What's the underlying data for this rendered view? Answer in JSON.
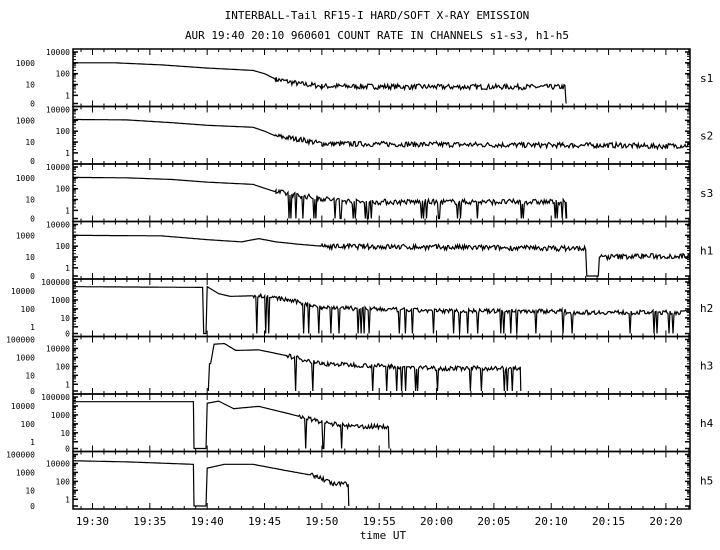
{
  "chart_data": {
    "type": "line",
    "title": "INTERBALL-Tail RF15-I HARD/SOFT X-RAY EMISSION",
    "subtitle": "AUR 19:40 20:10 960601  COUNT RATE IN CHANNELS s1-s3, h1-h5",
    "xlabel": "time UT",
    "x_unit": "minutes after 19:00",
    "xlim": [
      28.3,
      82.1
    ],
    "x_ticks": [
      30,
      35,
      40,
      45,
      50,
      55,
      60,
      65,
      70,
      75,
      80
    ],
    "x_tick_labels": [
      "19:30",
      "19:35",
      "19:40",
      "19:45",
      "19:50",
      "19:55",
      "20:00",
      "20:05",
      "20:10",
      "20:15",
      "20:20"
    ],
    "yscale": "log (0 at bottom)",
    "panels": [
      {
        "name": "s1",
        "y_ticks": [
          "0",
          "1",
          "10",
          "100",
          "1000",
          "10000"
        ],
        "ymax_decade": 4,
        "noise_from": 46,
        "points": [
          [
            28.3,
            1000
          ],
          [
            32,
            1000
          ],
          [
            36,
            650
          ],
          [
            40,
            330
          ],
          [
            44,
            200
          ],
          [
            45,
            100
          ],
          [
            46,
            30
          ],
          [
            48,
            12
          ],
          [
            50,
            7
          ],
          [
            60,
            6
          ],
          [
            71.2,
            6
          ],
          [
            71.3,
            0
          ]
        ]
      },
      {
        "name": "s2",
        "y_ticks": [
          "0",
          "1",
          "10",
          "100",
          "1000",
          "10000"
        ],
        "ymax_decade": 4,
        "noise_from": 46,
        "points": [
          [
            28.3,
            1200
          ],
          [
            33,
            1100
          ],
          [
            37,
            600
          ],
          [
            40,
            350
          ],
          [
            44,
            230
          ],
          [
            45,
            100
          ],
          [
            46,
            35
          ],
          [
            48,
            18
          ],
          [
            50,
            7
          ],
          [
            60,
            6
          ],
          [
            71,
            5
          ],
          [
            72,
            5
          ],
          [
            76,
            5
          ],
          [
            79,
            4
          ],
          [
            82.1,
            5
          ]
        ]
      },
      {
        "name": "s3",
        "y_ticks": [
          "0",
          "1",
          "10",
          "100",
          "1000",
          "10000"
        ],
        "ymax_decade": 4,
        "noise_from": 46,
        "points": [
          [
            28.3,
            1100
          ],
          [
            33,
            1000
          ],
          [
            37,
            700
          ],
          [
            40,
            400
          ],
          [
            44,
            250
          ],
          [
            45,
            110
          ],
          [
            46,
            50
          ],
          [
            48,
            25
          ],
          [
            50,
            12
          ],
          [
            53,
            6
          ],
          [
            60,
            6
          ],
          [
            71.3,
            6
          ],
          [
            71.35,
            0
          ]
        ]
      },
      {
        "name": "h1",
        "y_ticks": [
          "0",
          "1",
          "10",
          "100",
          "1000",
          "10000"
        ],
        "ymax_decade": 4,
        "noise_from": 50,
        "points": [
          [
            28.3,
            1000
          ],
          [
            36,
            900
          ],
          [
            40,
            400
          ],
          [
            43,
            250
          ],
          [
            44.5,
            500
          ],
          [
            46,
            250
          ],
          [
            48,
            150
          ],
          [
            50,
            100
          ],
          [
            60,
            80
          ],
          [
            73,
            60
          ],
          [
            73.1,
            0
          ],
          [
            74.1,
            0
          ],
          [
            74.2,
            10
          ],
          [
            78,
            12
          ],
          [
            82.1,
            12
          ]
        ]
      },
      {
        "name": "h2",
        "y_ticks": [
          "0",
          "1",
          "10",
          "100",
          "1000",
          "10000",
          "100000"
        ],
        "ymax_decade": 5,
        "noise_from": 44,
        "points": [
          [
            28.3,
            30000
          ],
          [
            39.6,
            25000
          ],
          [
            39.7,
            0
          ],
          [
            39.9,
            0
          ],
          [
            40,
            30000
          ],
          [
            41,
            5000
          ],
          [
            42,
            2500
          ],
          [
            44.5,
            3000
          ],
          [
            47,
            1000
          ],
          [
            50,
            150
          ],
          [
            55,
            90
          ],
          [
            60,
            60
          ],
          [
            71.2,
            55
          ],
          [
            71.3,
            40
          ],
          [
            82.1,
            40
          ]
        ]
      },
      {
        "name": "h3",
        "y_ticks": [
          "0",
          "1",
          "10",
          "100",
          "1000",
          "10000",
          "100000"
        ],
        "ymax_decade": 5,
        "noise_from": 47,
        "points": [
          [
            40.1,
            0
          ],
          [
            40.3,
            200
          ],
          [
            40.6,
            30000
          ],
          [
            41.5,
            35000
          ],
          [
            42.5,
            6000
          ],
          [
            44.5,
            7000
          ],
          [
            47,
            1500
          ],
          [
            50,
            200
          ],
          [
            56,
            100
          ],
          [
            60,
            60
          ],
          [
            67.3,
            60
          ],
          [
            67.35,
            0
          ]
        ]
      },
      {
        "name": "h4",
        "y_ticks": [
          "0",
          "1",
          "10",
          "100",
          "1000",
          "10000",
          "100000"
        ],
        "ymax_decade": 5,
        "noise_from": 48,
        "points": [
          [
            28.3,
            30000
          ],
          [
            38.8,
            30000
          ],
          [
            38.85,
            0
          ],
          [
            39.9,
            0
          ],
          [
            40,
            20000
          ],
          [
            41,
            35000
          ],
          [
            42.3,
            5000
          ],
          [
            44.5,
            9000
          ],
          [
            47,
            1500
          ],
          [
            50,
            150
          ],
          [
            52.5,
            50
          ],
          [
            55.8,
            50
          ],
          [
            55.85,
            0
          ]
        ]
      },
      {
        "name": "h5",
        "y_ticks": [
          "0",
          "1",
          "10",
          "100",
          "1000",
          "10000",
          "100000"
        ],
        "ymax_decade": 5,
        "noise_from": 49,
        "points": [
          [
            28.3,
            20000
          ],
          [
            33,
            15000
          ],
          [
            38.8,
            8000
          ],
          [
            38.85,
            0
          ],
          [
            39.9,
            0
          ],
          [
            40,
            3000
          ],
          [
            41.5,
            8000
          ],
          [
            44,
            8000
          ],
          [
            47,
            1500
          ],
          [
            49.5,
            400
          ],
          [
            51,
            50
          ],
          [
            52.3,
            50
          ],
          [
            52.35,
            0
          ]
        ]
      }
    ]
  }
}
